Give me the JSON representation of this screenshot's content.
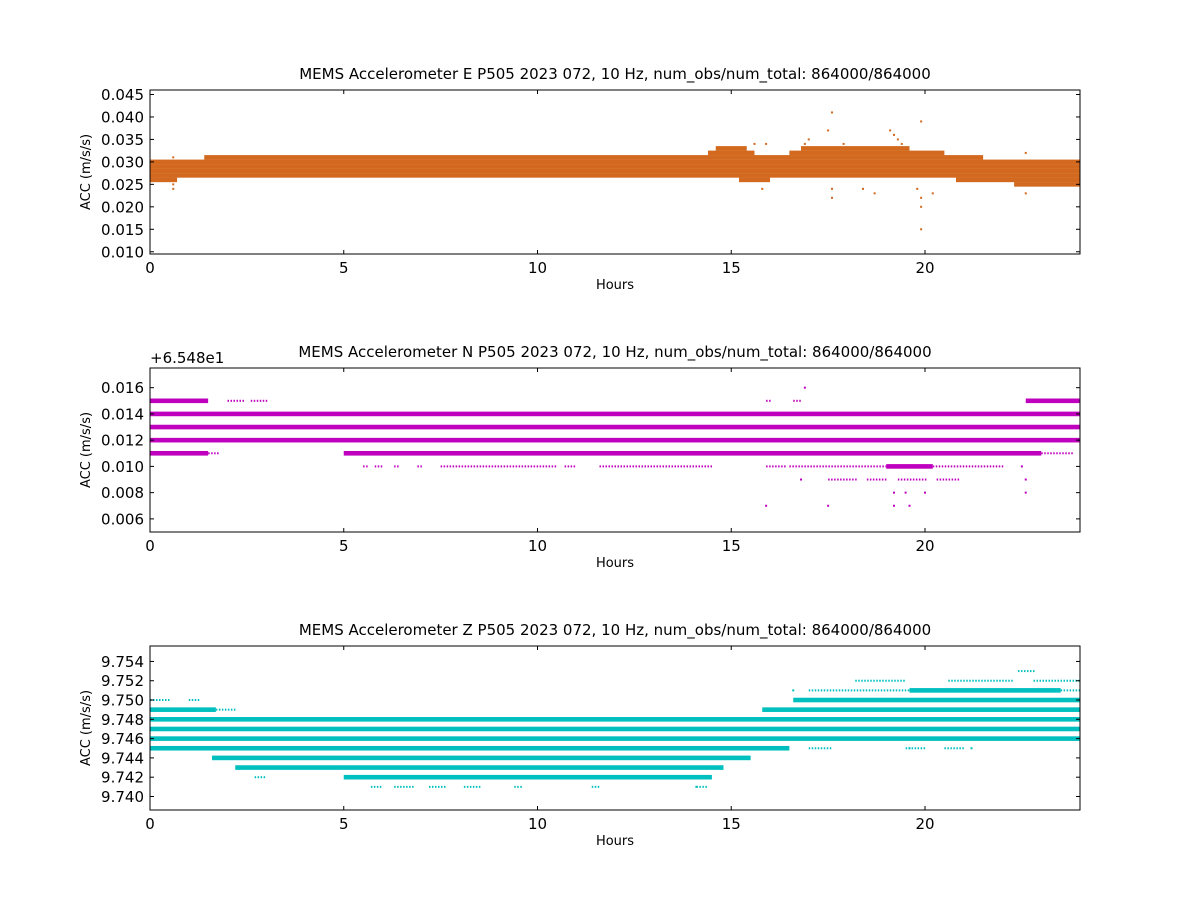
{
  "chart_data": [
    {
      "type": "scatter",
      "title": "MEMS Accelerometer E P505 2023 072, 10 Hz, num_obs/num_total: 864000/864000",
      "xlabel": "Hours",
      "ylabel": "ACC (m/s/s)",
      "offset_text": "",
      "xlim": [
        0,
        24
      ],
      "ylim": [
        0.0095,
        0.046
      ],
      "xticks": [
        0,
        5,
        10,
        15,
        20
      ],
      "xtick_labels": [
        "0",
        "5",
        "10",
        "15",
        "20"
      ],
      "yticks": [
        0.01,
        0.015,
        0.02,
        0.025,
        0.03,
        0.035,
        0.04,
        0.045
      ],
      "ytick_labels": [
        "0.010",
        "0.015",
        "0.020",
        "0.025",
        "0.030",
        "0.035",
        "0.040",
        "0.045"
      ],
      "grid": false,
      "color": "#D2691E",
      "bands": [
        {
          "y": 0.027,
          "x0": 0.0,
          "x1": 24.0
        },
        {
          "y": 0.028,
          "x0": 0.0,
          "x1": 24.0
        },
        {
          "y": 0.029,
          "x0": 0.0,
          "x1": 24.0
        },
        {
          "y": 0.03,
          "x0": 0.0,
          "x1": 24.0
        },
        {
          "y": 0.031,
          "x0": 1.4,
          "x1": 21.5
        },
        {
          "y": 0.026,
          "x0": 0.0,
          "x1": 0.7
        },
        {
          "y": 0.026,
          "x0": 15.2,
          "x1": 16.0
        },
        {
          "y": 0.026,
          "x0": 20.8,
          "x1": 24.0
        },
        {
          "y": 0.025,
          "x0": 22.3,
          "x1": 24.0
        },
        {
          "y": 0.032,
          "x0": 14.4,
          "x1": 15.6
        },
        {
          "y": 0.032,
          "x0": 16.5,
          "x1": 20.5
        },
        {
          "y": 0.033,
          "x0": 14.6,
          "x1": 15.4
        },
        {
          "y": 0.033,
          "x0": 16.8,
          "x1": 19.6
        }
      ],
      "points": [
        {
          "x": 0.6,
          "y": 0.025
        },
        {
          "x": 0.6,
          "y": 0.024
        },
        {
          "x": 0.6,
          "y": 0.031
        },
        {
          "x": 15.6,
          "y": 0.034
        },
        {
          "x": 15.9,
          "y": 0.034
        },
        {
          "x": 15.8,
          "y": 0.024
        },
        {
          "x": 16.9,
          "y": 0.034
        },
        {
          "x": 17.0,
          "y": 0.035
        },
        {
          "x": 17.6,
          "y": 0.041
        },
        {
          "x": 17.5,
          "y": 0.037
        },
        {
          "x": 17.6,
          "y": 0.024
        },
        {
          "x": 17.6,
          "y": 0.022
        },
        {
          "x": 17.9,
          "y": 0.034
        },
        {
          "x": 18.4,
          "y": 0.024
        },
        {
          "x": 18.7,
          "y": 0.023
        },
        {
          "x": 19.1,
          "y": 0.037
        },
        {
          "x": 19.2,
          "y": 0.036
        },
        {
          "x": 19.3,
          "y": 0.035
        },
        {
          "x": 19.4,
          "y": 0.034
        },
        {
          "x": 19.8,
          "y": 0.024
        },
        {
          "x": 19.9,
          "y": 0.039
        },
        {
          "x": 19.9,
          "y": 0.022
        },
        {
          "x": 19.9,
          "y": 0.02
        },
        {
          "x": 19.9,
          "y": 0.015
        },
        {
          "x": 20.2,
          "y": 0.023
        },
        {
          "x": 22.6,
          "y": 0.032
        },
        {
          "x": 22.6,
          "y": 0.023
        }
      ]
    },
    {
      "type": "scatter",
      "title": "MEMS Accelerometer N P505 2023 072, 10 Hz, num_obs/num_total: 864000/864000",
      "xlabel": "Hours",
      "ylabel": "ACC (m/s/s)",
      "offset_text": "+6.548e1",
      "xlim": [
        0,
        24
      ],
      "ylim": [
        0.005,
        0.0175
      ],
      "xticks": [
        0,
        5,
        10,
        15,
        20
      ],
      "xtick_labels": [
        "0",
        "5",
        "10",
        "15",
        "20"
      ],
      "yticks": [
        0.006,
        0.008,
        0.01,
        0.012,
        0.014,
        0.016
      ],
      "ytick_labels": [
        "0.006",
        "0.008",
        "0.010",
        "0.012",
        "0.014",
        "0.016"
      ],
      "grid": false,
      "color": "#BF00BF",
      "bands": [
        {
          "y": 0.012,
          "x0": 0.0,
          "x1": 24.0
        },
        {
          "y": 0.013,
          "x0": 0.0,
          "x1": 24.0
        },
        {
          "y": 0.014,
          "x0": 0.0,
          "x1": 24.0
        },
        {
          "y": 0.011,
          "x0": 0.0,
          "x1": 1.5
        },
        {
          "y": 0.011,
          "x0": 5.0,
          "x1": 23.0
        },
        {
          "y": 0.015,
          "x0": 0.0,
          "x1": 1.5
        },
        {
          "y": 0.015,
          "x0": 22.6,
          "x1": 24.0
        },
        {
          "y": 0.01,
          "x0": 19.0,
          "x1": 20.2
        }
      ],
      "segments": [
        {
          "y": 0.011,
          "x0": 1.5,
          "x1": 1.8
        },
        {
          "y": 0.011,
          "x0": 23.0,
          "x1": 23.8
        },
        {
          "y": 0.015,
          "x0": 2.0,
          "x1": 2.4
        },
        {
          "y": 0.015,
          "x0": 2.6,
          "x1": 3.0
        },
        {
          "y": 0.015,
          "x0": 15.9,
          "x1": 16.0
        },
        {
          "y": 0.015,
          "x0": 16.6,
          "x1": 16.8
        },
        {
          "y": 0.01,
          "x0": 5.5,
          "x1": 5.6
        },
        {
          "y": 0.01,
          "x0": 5.8,
          "x1": 6.0
        },
        {
          "y": 0.01,
          "x0": 6.3,
          "x1": 6.4
        },
        {
          "y": 0.01,
          "x0": 6.9,
          "x1": 7.0
        },
        {
          "y": 0.01,
          "x0": 7.5,
          "x1": 10.5
        },
        {
          "y": 0.01,
          "x0": 10.7,
          "x1": 11.0
        },
        {
          "y": 0.01,
          "x0": 11.6,
          "x1": 14.5
        },
        {
          "y": 0.01,
          "x0": 15.9,
          "x1": 16.4
        },
        {
          "y": 0.01,
          "x0": 16.5,
          "x1": 19.0
        },
        {
          "y": 0.01,
          "x0": 20.2,
          "x1": 22.0
        },
        {
          "y": 0.009,
          "x0": 17.5,
          "x1": 18.2
        },
        {
          "y": 0.009,
          "x0": 18.5,
          "x1": 19.0
        },
        {
          "y": 0.009,
          "x0": 19.3,
          "x1": 20.0
        },
        {
          "y": 0.009,
          "x0": 20.3,
          "x1": 20.9
        }
      ],
      "points": [
        {
          "x": 16.9,
          "y": 0.016
        },
        {
          "x": 15.9,
          "y": 0.007
        },
        {
          "x": 17.5,
          "y": 0.007
        },
        {
          "x": 19.2,
          "y": 0.007
        },
        {
          "x": 19.6,
          "y": 0.007
        },
        {
          "x": 16.8,
          "y": 0.009
        },
        {
          "x": 19.2,
          "y": 0.008
        },
        {
          "x": 19.5,
          "y": 0.008
        },
        {
          "x": 20.0,
          "y": 0.008
        },
        {
          "x": 22.6,
          "y": 0.008
        },
        {
          "x": 22.6,
          "y": 0.009
        },
        {
          "x": 22.5,
          "y": 0.01
        }
      ]
    },
    {
      "type": "scatter",
      "title": "MEMS Accelerometer Z P505 2023 072, 10 Hz, num_obs/num_total: 864000/864000",
      "xlabel": "Hours",
      "ylabel": "ACC (m/s/s)",
      "offset_text": "",
      "xlim": [
        0,
        24
      ],
      "ylim": [
        9.7386,
        9.7556
      ],
      "xticks": [
        0,
        5,
        10,
        15,
        20
      ],
      "xtick_labels": [
        "0",
        "5",
        "10",
        "15",
        "20"
      ],
      "yticks": [
        9.74,
        9.742,
        9.744,
        9.746,
        9.748,
        9.75,
        9.752,
        9.754
      ],
      "ytick_labels": [
        "9.740",
        "9.742",
        "9.744",
        "9.746",
        "9.748",
        "9.750",
        "9.752",
        "9.754"
      ],
      "grid": false,
      "color": "#00BFBF",
      "bands": [
        {
          "y": 9.745,
          "x0": 0.0,
          "x1": 16.5
        },
        {
          "y": 9.746,
          "x0": 0.0,
          "x1": 24.0
        },
        {
          "y": 9.747,
          "x0": 0.0,
          "x1": 24.0
        },
        {
          "y": 9.748,
          "x0": 0.0,
          "x1": 24.0
        },
        {
          "y": 9.749,
          "x0": 0.0,
          "x1": 1.7
        },
        {
          "y": 9.749,
          "x0": 15.8,
          "x1": 24.0
        },
        {
          "y": 9.75,
          "x0": 16.6,
          "x1": 24.0
        },
        {
          "y": 9.744,
          "x0": 1.6,
          "x1": 15.5
        },
        {
          "y": 9.743,
          "x0": 2.2,
          "x1": 14.8
        },
        {
          "y": 9.742,
          "x0": 5.0,
          "x1": 14.5
        },
        {
          "y": 9.751,
          "x0": 19.6,
          "x1": 23.5
        }
      ],
      "segments": [
        {
          "y": 9.75,
          "x0": 0.0,
          "x1": 0.5
        },
        {
          "y": 9.75,
          "x0": 1.0,
          "x1": 1.3
        },
        {
          "y": 9.749,
          "x0": 1.7,
          "x1": 2.2
        },
        {
          "y": 9.748,
          "x0": 2.1,
          "x1": 2.7
        },
        {
          "y": 9.748,
          "x0": 3.2,
          "x1": 3.7
        },
        {
          "y": 9.748,
          "x0": 4.0,
          "x1": 4.5
        },
        {
          "y": 9.748,
          "x0": 4.8,
          "x1": 5.0
        },
        {
          "y": 9.742,
          "x0": 2.7,
          "x1": 3.0
        },
        {
          "y": 9.741,
          "x0": 5.7,
          "x1": 6.0
        },
        {
          "y": 9.741,
          "x0": 6.3,
          "x1": 6.8
        },
        {
          "y": 9.741,
          "x0": 7.2,
          "x1": 7.6
        },
        {
          "y": 9.741,
          "x0": 8.1,
          "x1": 8.5
        },
        {
          "y": 9.741,
          "x0": 9.4,
          "x1": 9.6
        },
        {
          "y": 9.741,
          "x0": 11.4,
          "x1": 11.6
        },
        {
          "y": 9.741,
          "x0": 14.1,
          "x1": 14.4
        },
        {
          "y": 9.751,
          "x0": 17.0,
          "x1": 19.6
        },
        {
          "y": 9.751,
          "x0": 23.5,
          "x1": 24.0
        },
        {
          "y": 9.752,
          "x0": 18.2,
          "x1": 19.5
        },
        {
          "y": 9.752,
          "x0": 20.6,
          "x1": 22.3
        },
        {
          "y": 9.752,
          "x0": 22.8,
          "x1": 24.0
        },
        {
          "y": 9.753,
          "x0": 22.4,
          "x1": 22.8
        },
        {
          "y": 9.745,
          "x0": 17.0,
          "x1": 17.6
        },
        {
          "y": 9.745,
          "x0": 19.5,
          "x1": 20.0
        },
        {
          "y": 9.745,
          "x0": 20.5,
          "x1": 21.0
        }
      ],
      "points": [
        {
          "x": 16.6,
          "y": 9.751
        },
        {
          "x": 19.6,
          "y": 9.745
        },
        {
          "x": 21.2,
          "y": 9.745
        },
        {
          "x": 8.2,
          "y": 9.744
        },
        {
          "x": 14.1,
          "y": 9.741
        }
      ]
    }
  ]
}
